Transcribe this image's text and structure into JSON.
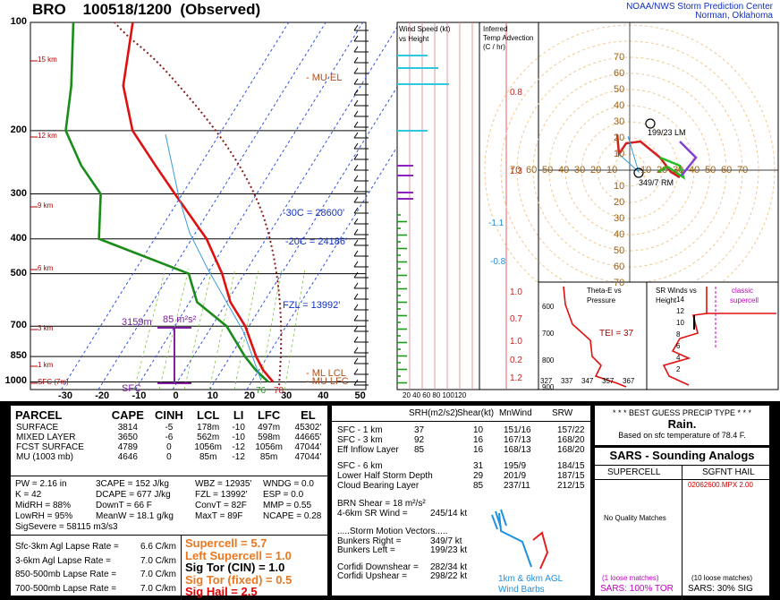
{
  "header": {
    "title": "BRO    100518/1200  (Observed)",
    "org_line1": "NOAA/NWS Storm Prediction Center",
    "org_line2": "Norman, Oklahoma"
  },
  "skewt": {
    "pressure_labels": [
      "100",
      "200",
      "300",
      "400",
      "500",
      "700",
      "850",
      "1000"
    ],
    "height_labels": [
      "15 km",
      "12 km",
      "9 km",
      "6 km",
      "3 km",
      "1 km",
      "SFC (7m)"
    ],
    "temp_labels": [
      "-30",
      "-20",
      "-10",
      "0",
      "10",
      "20",
      "30",
      "40",
      "50"
    ],
    "annotations": {
      "mu_el": "- MU EL",
      "iso_30": "-30C = 28600'",
      "iso_20": "-20C = 24186'",
      "fzl": "FZL = 13992'",
      "ml_lcl": "- ML LCL",
      "mu_lfc": "- MU LFC",
      "sfc": "SFC",
      "sfc_td": "76",
      "sfc_t": "78",
      "srh_depth": "3159m",
      "srh_val": "85 m²s²"
    }
  },
  "wind_panel": {
    "title_line1": "Wind Speed (kt)",
    "title_line2": "vs Height",
    "axis": "20 40 60 80 100120"
  },
  "temp_adv_panel": {
    "title_line1": "Inferred",
    "title_line2": "Temp Advection",
    "title_line3": "(C / hr)",
    "values": [
      "0.8",
      "1.3",
      "-1.1",
      "-0.8",
      "1.0",
      "0.7",
      "1.0",
      "0.2",
      "1.2"
    ]
  },
  "hodograph": {
    "labels": [
      "70",
      "60",
      "50",
      "40",
      "30",
      "20",
      "10"
    ],
    "lm_label": "199/23 LM",
    "rm_label": "349/7 RM"
  },
  "theta_panel": {
    "title_line1": "Theta-E vs",
    "title_line2": "Pressure",
    "tei": "TEI = 37",
    "p_ticks": [
      "600",
      "700",
      "800",
      "900"
    ],
    "x_ticks": [
      "327",
      "337",
      "347",
      "357",
      "367"
    ]
  },
  "srwinds_panel": {
    "title_line1": "SR Winds vs",
    "title_line2": "Height",
    "note_line1": "classic",
    "note_line2": "supercell",
    "y_ticks": [
      "14",
      "12",
      "10",
      "8",
      "6",
      "4",
      "2"
    ]
  },
  "parcel_table": {
    "headers": [
      "PARCEL",
      "CAPE",
      "CINH",
      "LCL",
      "LI",
      "LFC",
      "EL"
    ],
    "rows": [
      [
        "SURFACE",
        "3814",
        "-5",
        "178m",
        "-10",
        "497m",
        "45302'"
      ],
      [
        "MIXED LAYER",
        "3650",
        "-6",
        "562m",
        "-10",
        "598m",
        "44665'"
      ],
      [
        "FCST SURFACE",
        "4789",
        "0",
        "1056m",
        "-12",
        "1056m",
        "47044'"
      ],
      [
        "MU   (1003 mb)",
        "4646",
        "0",
        "85m",
        "-12",
        "85m",
        "47044'"
      ]
    ]
  },
  "indices": {
    "col1": [
      "PW = 2.16 in",
      "K = 42",
      "MidRH = 88%",
      "LowRH = 95%",
      "SigSevere = 58115 m3/s3"
    ],
    "col2": [
      "3CAPE = 152 J/kg",
      "DCAPE = 677 J/kg",
      "DownT = 66 F",
      "MeanW = 18.1 g/kg"
    ],
    "col3": [
      "WBZ = 12935'",
      "FZL = 13992'",
      "ConvT = 82F",
      "MaxT = 89F"
    ],
    "col4": [
      "WNDG = 0.0",
      "ESP = 0.0",
      "MMP = 0.55",
      "NCAPE = 0.28"
    ]
  },
  "lapse_rates": [
    [
      "Sfc-3km Agl Lapse Rate =",
      "6.6 C/km"
    ],
    [
      "3-6km Agl Lapse Rate =",
      "7.0 C/km"
    ],
    [
      "850-500mb Lapse Rate =",
      "7.0 C/km"
    ],
    [
      "700-500mb Lapse Rate =",
      "7.0 C/km"
    ]
  ],
  "composites": [
    {
      "text": "Supercell = 5.7",
      "color": "#e87820"
    },
    {
      "text": "Left Supercell = 1.0",
      "color": "#e87820"
    },
    {
      "text": "Sig Tor (CIN) = 1.0",
      "color": "#000000"
    },
    {
      "text": "Sig Tor (fixed) = 0.5",
      "color": "#e87820"
    },
    {
      "text": "Sig Hail = 2.5",
      "color": "#e00000"
    }
  ],
  "kinematics": {
    "headers": [
      "SRH(m2/s2)",
      "Shear(kt)",
      "MnWind",
      "SRW"
    ],
    "rows": [
      [
        "SFC - 1 km",
        "37",
        "10",
        "151/16",
        "157/22"
      ],
      [
        "SFC - 3 km",
        "92",
        "16",
        "167/13",
        "168/20"
      ],
      [
        "Eff Inflow Layer",
        "85",
        "16",
        "168/13",
        "168/20"
      ],
      [
        "SFC - 6 km",
        "",
        "31",
        "195/9",
        "184/15"
      ],
      [
        "Lower Half Storm Depth",
        "",
        "29",
        "201/9",
        "187/15"
      ],
      [
        "Cloud Bearing Layer",
        "",
        "85",
        "237/11",
        "212/15"
      ]
    ],
    "brn_shear": "BRN Shear =  18 m²/s²",
    "sr_wind_46": "4-6km SR Wind =",
    "sr_wind_46_val": "245/14 kt",
    "motion_title": ".....Storm Motion Vectors.....",
    "bunkers_right": "Bunkers Right =",
    "bunkers_right_val": "349/7 kt",
    "bunkers_left": "Bunkers Left =",
    "bunkers_left_val": "199/23 kt",
    "corfidi_down": "Corfidi Downshear =",
    "corfidi_down_val": "282/34 kt",
    "corfidi_up": "Corfidi Upshear =",
    "corfidi_up_val": "298/22 kt",
    "barbs_label1": "1km & 6km AGL",
    "barbs_label2": "Wind Barbs"
  },
  "precip": {
    "title": "* * * BEST GUESS PRECIP TYPE * * *",
    "value": "Rain.",
    "note": "Based on sfc temperature of 78.4 F."
  },
  "sars": {
    "title": "SARS - Sounding Analogs",
    "col1": "SUPERCELL",
    "col2": "SGFNT HAIL",
    "hail_match": "02062600.MPX  2.00",
    "supercell_none": "No Quality Matches",
    "loose1": "(1 loose matches)",
    "loose2": "(10 loose matches)",
    "sars1": "SARS:  100% TOR",
    "sars2": "SARS:  30% SIG"
  },
  "chart_data": [
    {
      "type": "line",
      "title": "BRO 100518/1200 (Observed)",
      "xlabel": "",
      "ylabel": "",
      "x_ticks": [
        -30,
        -20,
        -10,
        0,
        10,
        20,
        30,
        40,
        50
      ],
      "y_ticks": [
        100,
        200,
        300,
        400,
        500,
        700,
        850,
        1000
      ],
      "series": [
        {
          "pressure": [
            1000,
            925,
            850,
            700,
            600,
            500,
            400,
            300,
            250,
            200,
            150,
            100
          ],
          "values": [
            25.8,
            21,
            17,
            9,
            1,
            -6,
            -16,
            -32,
            -42,
            -54,
            -64,
            -72
          ]
        },
        {
          "pressure": [
            1000,
            925,
            850,
            700,
            600,
            500,
            400,
            300,
            250,
            200,
            150,
            100
          ],
          "values": [
            24.5,
            19,
            14,
            4,
            -8,
            -15,
            -45,
            -52,
            -62,
            -72,
            -78,
            -88
          ]
        }
      ]
    }
  ]
}
